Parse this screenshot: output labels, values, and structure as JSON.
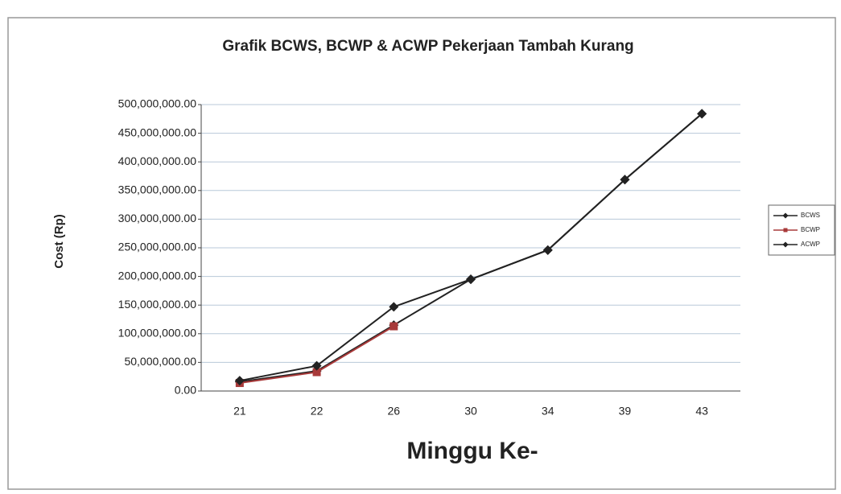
{
  "chart_data": {
    "type": "line",
    "title": "Grafik BCWS, BCWP & ACWP Pekerjaan Tambah Kurang",
    "x_label": "Minggu Ke-",
    "y_label": "Cost (Rp)",
    "categories": [
      "21",
      "22",
      "26",
      "30",
      "34",
      "39",
      "43"
    ],
    "series": [
      {
        "name": "BCWS",
        "color": "#222222",
        "marker": "diamond",
        "values": [
          16000000,
          35000000,
          115000000,
          195000000,
          246000000,
          369000000,
          484000000
        ]
      },
      {
        "name": "BCWP",
        "color": "#a83a3a",
        "marker": "square",
        "values": [
          14000000,
          33000000,
          113000000,
          null,
          null,
          null,
          null
        ]
      },
      {
        "name": "ACWP",
        "color": "#222222",
        "marker": "diamond",
        "values": [
          18000000,
          44000000,
          147000000,
          195000000,
          246000000,
          369000000,
          484000000
        ]
      }
    ],
    "ylim": [
      0,
      500000000
    ],
    "yticks": [
      {
        "value": 0,
        "label": "0.00"
      },
      {
        "value": 50000000,
        "label": "50,000,000.00"
      },
      {
        "value": 100000000,
        "label": "100,000,000.00"
      },
      {
        "value": 150000000,
        "label": "150,000,000.00"
      },
      {
        "value": 200000000,
        "label": "200,000,000.00"
      },
      {
        "value": 250000000,
        "label": "250,000,000.00"
      },
      {
        "value": 300000000,
        "label": "300,000,000.00"
      },
      {
        "value": 350000000,
        "label": "350,000,000.00"
      },
      {
        "value": 400000000,
        "label": "400,000,000.00"
      },
      {
        "value": 450000000,
        "label": "450,000,000.00"
      },
      {
        "value": 500000000,
        "label": "500,000,000.00"
      }
    ],
    "grid": true,
    "legend": "right"
  }
}
